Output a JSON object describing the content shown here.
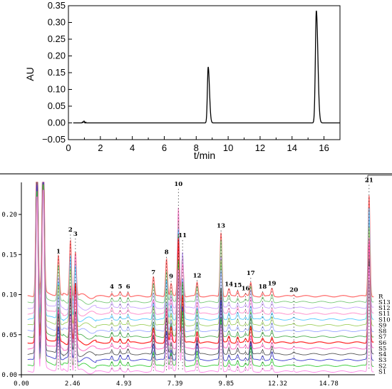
{
  "chart_data": [
    {
      "type": "line",
      "xlabel": "t/min",
      "ylabel": "AU",
      "xlim": [
        0,
        17
      ],
      "ylim": [
        -0.05,
        0.35
      ],
      "x_ticks": [
        "0",
        "2",
        "4",
        "6",
        "8",
        "10",
        "12",
        "14",
        "16"
      ],
      "y_ticks": [
        "−0.05",
        "0.00",
        "0.05",
        "0.10",
        "0.15",
        "0.20",
        "0.25",
        "0.30",
        "0.35"
      ],
      "series": [
        {
          "peaks": [
            {
              "x": 0.95,
              "y": 0.004
            },
            {
              "x": 8.75,
              "y": 0.167
            },
            {
              "x": 15.52,
              "y": 0.335
            }
          ]
        }
      ]
    },
    {
      "type": "line",
      "xlim": [
        0,
        17
      ],
      "ylim": [
        0,
        0.24
      ],
      "x_ticks": [
        "0.00",
        "2.46",
        "4.93",
        "7.39",
        "9.85",
        "12.32",
        "14.78"
      ],
      "y_ticks": [
        "0.00",
        "0.05",
        "0.10",
        "0.15",
        "0.20"
      ],
      "trace_labels": [
        "R",
        "S13",
        "S12",
        "S11",
        "S10",
        "S9",
        "S8",
        "S7",
        "S6",
        "S5",
        "S4",
        "S3",
        "S2",
        "S1"
      ],
      "trace_colors": [
        "#ff6a6a",
        "#78c878",
        "#c8a0ff",
        "#ff88c8",
        "#50c8ff",
        "#a0d060",
        "#9aa6ff",
        "#4caf50",
        "#ff2020",
        "#ff5fbf",
        "#555555",
        "#3a3acc",
        "#32cd32",
        "#ff88e8"
      ],
      "peaks": [
        {
          "label": "1",
          "x": 1.78,
          "y": 0.148
        },
        {
          "label": "2",
          "x": 2.36,
          "y": 0.175
        },
        {
          "label": "3",
          "x": 2.6,
          "y": 0.17
        },
        {
          "label": "4",
          "x": 4.35,
          "y": 0.104
        },
        {
          "label": "5",
          "x": 4.75,
          "y": 0.104
        },
        {
          "label": "6",
          "x": 5.13,
          "y": 0.104
        },
        {
          "label": "7",
          "x": 6.35,
          "y": 0.122
        },
        {
          "label": "8",
          "x": 6.98,
          "y": 0.147
        },
        {
          "label": "9",
          "x": 7.2,
          "y": 0.117
        },
        {
          "label": "10",
          "x": 7.55,
          "y": 0.232
        },
        {
          "label": "11",
          "x": 7.75,
          "y": 0.168
        },
        {
          "label": "12",
          "x": 8.45,
          "y": 0.118
        },
        {
          "label": "13",
          "x": 9.6,
          "y": 0.18
        },
        {
          "label": "14",
          "x": 9.98,
          "y": 0.107
        },
        {
          "label": "15",
          "x": 10.4,
          "y": 0.106
        },
        {
          "label": "16",
          "x": 10.78,
          "y": 0.102
        },
        {
          "label": "17",
          "x": 11.03,
          "y": 0.121
        },
        {
          "label": "18",
          "x": 11.6,
          "y": 0.104
        },
        {
          "label": "19",
          "x": 12.05,
          "y": 0.108
        },
        {
          "label": "20",
          "x": 13.1,
          "y": 0.1
        },
        {
          "label": "21",
          "x": 16.72,
          "y": 0.237
        }
      ]
    }
  ]
}
